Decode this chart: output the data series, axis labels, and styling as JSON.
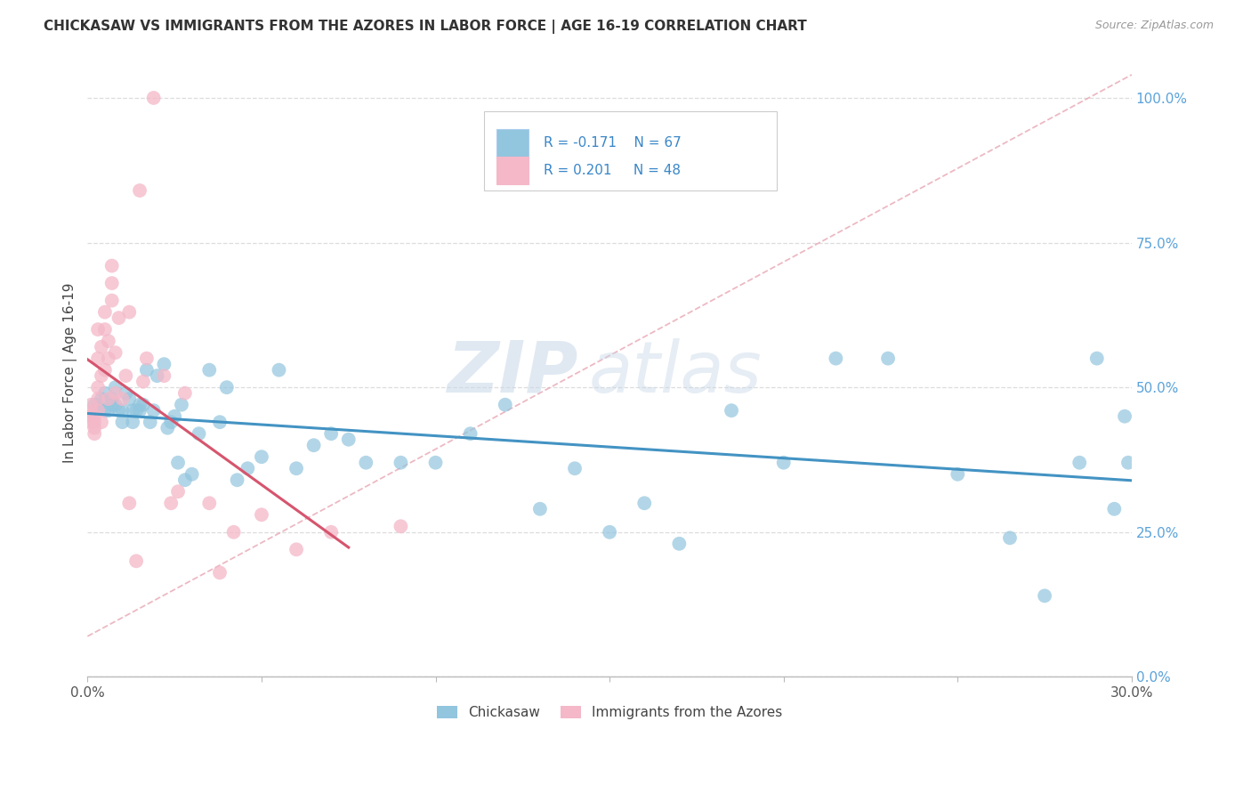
{
  "title": "CHICKASAW VS IMMIGRANTS FROM THE AZORES IN LABOR FORCE | AGE 16-19 CORRELATION CHART",
  "source": "Source: ZipAtlas.com",
  "ylabel": "In Labor Force | Age 16-19",
  "legend_label1": "Chickasaw",
  "legend_label2": "Immigrants from the Azores",
  "r1": "-0.171",
  "n1": "67",
  "r2": "0.201",
  "n2": "48",
  "color_blue": "#92c5de",
  "color_pink": "#f4b8c8",
  "color_blue_line": "#4393c3",
  "color_pink_line": "#d6556e",
  "color_diagonal": "#e8a0a8",
  "watermark_zip": "ZIP",
  "watermark_atlas": "atlas",
  "blue_x": [
    0.002,
    0.003,
    0.004,
    0.005,
    0.005,
    0.006,
    0.007,
    0.007,
    0.008,
    0.008,
    0.009,
    0.01,
    0.01,
    0.011,
    0.012,
    0.013,
    0.013,
    0.014,
    0.015,
    0.015,
    0.016,
    0.017,
    0.018,
    0.019,
    0.02,
    0.022,
    0.023,
    0.024,
    0.025,
    0.026,
    0.027,
    0.028,
    0.03,
    0.032,
    0.035,
    0.038,
    0.04,
    0.043,
    0.046,
    0.05,
    0.055,
    0.06,
    0.065,
    0.07,
    0.075,
    0.08,
    0.09,
    0.1,
    0.11,
    0.12,
    0.13,
    0.14,
    0.15,
    0.16,
    0.17,
    0.185,
    0.2,
    0.215,
    0.23,
    0.25,
    0.265,
    0.275,
    0.285,
    0.29,
    0.295,
    0.298,
    0.299
  ],
  "blue_y": [
    0.47,
    0.47,
    0.48,
    0.46,
    0.49,
    0.46,
    0.48,
    0.47,
    0.5,
    0.47,
    0.46,
    0.44,
    0.46,
    0.49,
    0.48,
    0.44,
    0.46,
    0.46,
    0.47,
    0.46,
    0.47,
    0.53,
    0.44,
    0.46,
    0.52,
    0.54,
    0.43,
    0.44,
    0.45,
    0.37,
    0.47,
    0.34,
    0.35,
    0.42,
    0.53,
    0.44,
    0.5,
    0.34,
    0.36,
    0.38,
    0.53,
    0.36,
    0.4,
    0.42,
    0.41,
    0.37,
    0.37,
    0.37,
    0.42,
    0.47,
    0.29,
    0.36,
    0.25,
    0.3,
    0.23,
    0.46,
    0.37,
    0.55,
    0.55,
    0.35,
    0.24,
    0.14,
    0.37,
    0.55,
    0.29,
    0.45,
    0.37
  ],
  "pink_x": [
    0.001,
    0.001,
    0.001,
    0.001,
    0.002,
    0.002,
    0.002,
    0.002,
    0.003,
    0.003,
    0.003,
    0.003,
    0.003,
    0.004,
    0.004,
    0.004,
    0.005,
    0.005,
    0.005,
    0.006,
    0.006,
    0.006,
    0.007,
    0.007,
    0.007,
    0.008,
    0.008,
    0.009,
    0.01,
    0.011,
    0.012,
    0.015,
    0.016,
    0.017,
    0.019,
    0.022,
    0.024,
    0.026,
    0.028,
    0.035,
    0.038,
    0.042,
    0.05,
    0.06,
    0.07,
    0.09,
    0.012,
    0.014
  ],
  "pink_y": [
    0.44,
    0.45,
    0.46,
    0.47,
    0.42,
    0.44,
    0.45,
    0.43,
    0.46,
    0.48,
    0.5,
    0.55,
    0.6,
    0.52,
    0.57,
    0.44,
    0.53,
    0.6,
    0.63,
    0.48,
    0.55,
    0.58,
    0.65,
    0.68,
    0.71,
    0.56,
    0.49,
    0.62,
    0.48,
    0.52,
    0.63,
    0.84,
    0.51,
    0.55,
    1.0,
    0.52,
    0.3,
    0.32,
    0.49,
    0.3,
    0.18,
    0.25,
    0.28,
    0.22,
    0.25,
    0.26,
    0.3,
    0.2
  ],
  "xlim": [
    0.0,
    0.3
  ],
  "ylim": [
    0.0,
    1.05
  ],
  "yticks": [
    0.0,
    0.25,
    0.5,
    0.75,
    1.0
  ],
  "xtick_positions": [
    0.0,
    0.05,
    0.1,
    0.15,
    0.2,
    0.25,
    0.3
  ]
}
